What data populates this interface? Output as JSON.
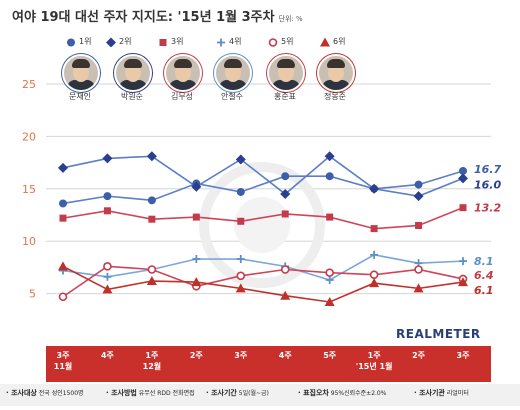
{
  "title": "여야 19대 대선 주자 지지도: '15년 1월 3주차",
  "unit": "단위: %",
  "legend": [
    {
      "label": "1위",
      "color": "#3d5ea8",
      "marker": "circle",
      "line": "#5b7ec7"
    },
    {
      "label": "2위",
      "color": "#2b3f8f",
      "marker": "diamond",
      "line": "#5b7ec7"
    },
    {
      "label": "3위",
      "color": "#c33a4a",
      "marker": "square",
      "line": "#d0445a"
    },
    {
      "label": "4위",
      "color": "#5a8fc9",
      "marker": "cross",
      "line": "#7aa7d8"
    },
    {
      "label": "5위",
      "color": "#c33a4a",
      "marker": "open-circle",
      "line": "#d0445a"
    },
    {
      "label": "6위",
      "color": "#c0302a",
      "marker": "triangle",
      "line": "#d0445a"
    }
  ],
  "candidates": [
    "문재인",
    "박원순",
    "김무성",
    "안철수",
    "홍준표",
    "정몽준"
  ],
  "watermark": "REALMETER",
  "footer": [
    {
      "label": "· 조사대상",
      "detail": "전국 성인1500명"
    },
    {
      "label": "· 조사방법",
      "detail": "유무선 RDD 전화면접"
    },
    {
      "label": "· 조사기간",
      "detail": "5일(월~금)"
    },
    {
      "label": "· 표집오차",
      "detail": "95%신뢰수준±2.0%"
    },
    {
      "label": "· 조사기관",
      "detail": "리얼미터"
    }
  ],
  "chart_data": {
    "type": "line",
    "title": "여야 19대 대선 주자 지지도: '15년 1월 3주차",
    "xlabel": "",
    "ylabel": "",
    "ylim": [
      0,
      25
    ],
    "yticks": [
      5,
      10,
      15,
      20,
      25
    ],
    "categories": [
      "3주\n11월",
      "4주",
      "1주\n12월",
      "2주",
      "3주",
      "4주",
      "5주",
      "1주\n'15년 1월",
      "2주",
      "3주"
    ],
    "grid": true,
    "series": [
      {
        "name": "1위",
        "color": "#5b7ec7",
        "marker": "circle",
        "values": [
          13.6,
          14.3,
          13.9,
          15.5,
          14.7,
          16.2,
          16.2,
          15.0,
          15.4,
          16.7
        ],
        "end_label": "16.7"
      },
      {
        "name": "2위",
        "color": "#5b7ec7",
        "marker": "diamond",
        "values": [
          17.0,
          17.9,
          18.1,
          15.2,
          17.8,
          14.5,
          18.1,
          15.0,
          14.3,
          16.0
        ],
        "end_label": "16.0"
      },
      {
        "name": "3위",
        "color": "#d0445a",
        "marker": "square",
        "values": [
          12.2,
          12.9,
          12.1,
          12.3,
          11.9,
          12.6,
          12.3,
          11.2,
          11.5,
          13.2
        ],
        "end_label": "13.2"
      },
      {
        "name": "4위",
        "color": "#7aa7d8",
        "marker": "cross",
        "values": [
          7.2,
          6.6,
          7.3,
          8.3,
          8.3,
          7.6,
          6.3,
          8.7,
          7.9,
          8.1
        ],
        "end_label": "8.1"
      },
      {
        "name": "5위",
        "color": "#d0445a",
        "marker": "open-circle",
        "values": [
          4.7,
          7.6,
          7.3,
          5.7,
          6.7,
          7.3,
          7.0,
          6.8,
          7.3,
          6.4
        ],
        "end_label": "6.4"
      },
      {
        "name": "6위",
        "color": "#c0302a",
        "marker": "triangle",
        "values": [
          7.6,
          5.4,
          6.2,
          6.1,
          5.5,
          4.8,
          4.2,
          6.0,
          5.5,
          6.1
        ],
        "end_label": "6.1"
      }
    ]
  }
}
